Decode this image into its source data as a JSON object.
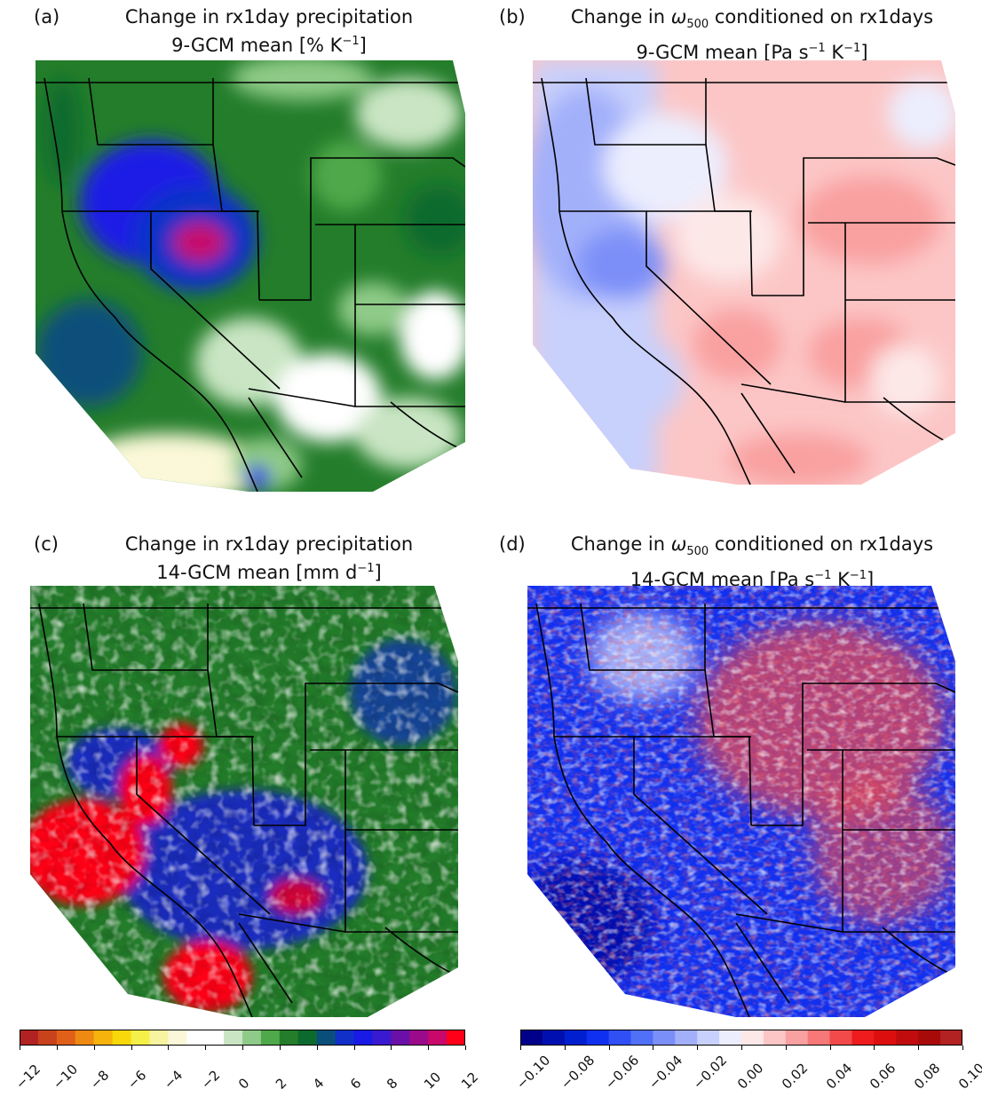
{
  "panels": [
    {
      "tag": "(a)",
      "line1": "Change in rx1day precipitation",
      "line2_pre": "9-GCM mean [% K",
      "line2_sup": "−1",
      "line2_post": "]"
    },
    {
      "tag": "(b)",
      "line1_pre": "Change in ",
      "line1_omega": "ω",
      "line1_sub": "500",
      "line1_post": " conditioned on rx1days",
      "line2_pre": "9-GCM mean [Pa s",
      "line2_sup1": "−1",
      "line2_mid": " K",
      "line2_sup2": "−1",
      "line2_post": "]"
    },
    {
      "tag": "(c)",
      "line1": "Change in rx1day precipitation",
      "line2_pre": "14-GCM mean [mm d",
      "line2_sup": "−1",
      "line2_post": "]"
    },
    {
      "tag": "(d)",
      "line1_pre": "Change in ",
      "line1_omega": "ω",
      "line1_sub": "500",
      "line1_post": " conditioned on rx1days",
      "line2_pre": "14-GCM mean [Pa s",
      "line2_sup1": "−1",
      "line2_mid": " K",
      "line2_sup2": "−1",
      "line2_post": "]"
    }
  ],
  "colorbars": {
    "precip": {
      "ticks": [
        "−12",
        "−10",
        "−8",
        "−6",
        "−4",
        "−2",
        "0",
        "2",
        "4",
        "6",
        "8",
        "10",
        "12"
      ],
      "colors": [
        "#b22222",
        "#c8421c",
        "#e0601a",
        "#ee8a12",
        "#f5b30c",
        "#f8d80a",
        "#f5ef4a",
        "#f7f3a0",
        "#faf8d8",
        "#ffffff",
        "#ffffff",
        "#c9e5c3",
        "#8fcb88",
        "#4fa84a",
        "#237d2a",
        "#0d6a2e",
        "#0a4f7a",
        "#1030c8",
        "#1a1ae6",
        "#3a1ad0",
        "#6a10a8",
        "#9a0a8a",
        "#c8086a",
        "#ff0018"
      ]
    },
    "omega": {
      "ticks": [
        "−0.10",
        "−0.08",
        "−0.06",
        "−0.04",
        "−0.02",
        "0.00",
        "0.02",
        "0.04",
        "0.06",
        "0.08",
        "0.10"
      ],
      "colors": [
        "#00008b",
        "#0010b0",
        "#0020d0",
        "#1030f0",
        "#3050f5",
        "#5070f7",
        "#7b8ff8",
        "#a2b0fa",
        "#c8d0fc",
        "#eceefe",
        "#fde8e8",
        "#fcc6c6",
        "#f9a0a0",
        "#f67878",
        "#f24a4a",
        "#ee1c1c",
        "#dc0e0e",
        "#c00c0c",
        "#a80a0a",
        "#b22222"
      ]
    }
  }
}
